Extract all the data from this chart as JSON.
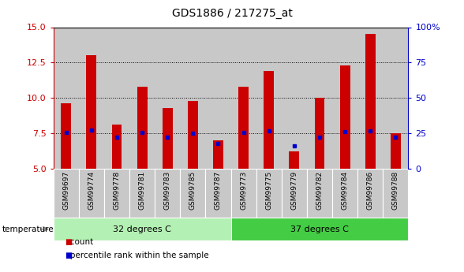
{
  "title": "GDS1886 / 217275_at",
  "categories": [
    "GSM99697",
    "GSM99774",
    "GSM99778",
    "GSM99781",
    "GSM99783",
    "GSM99785",
    "GSM99787",
    "GSM99773",
    "GSM99775",
    "GSM99779",
    "GSM99782",
    "GSM99784",
    "GSM99786",
    "GSM99788"
  ],
  "count_values": [
    9.6,
    13.0,
    8.1,
    10.8,
    9.3,
    9.8,
    7.0,
    10.8,
    11.9,
    6.2,
    10.0,
    12.3,
    14.5,
    7.5
  ],
  "percentile_values": [
    7.55,
    7.72,
    7.2,
    7.55,
    7.25,
    7.5,
    6.8,
    7.55,
    7.65,
    6.6,
    7.2,
    7.6,
    7.65,
    7.25
  ],
  "ylim": [
    5,
    15
  ],
  "y2lim": [
    0,
    100
  ],
  "yticks": [
    5,
    7.5,
    10,
    12.5,
    15
  ],
  "y2ticks": [
    0,
    25,
    50,
    75,
    100
  ],
  "group1_label": "32 degrees C",
  "group2_label": "37 degrees C",
  "group1_count": 7,
  "group2_count": 7,
  "group1_color": "#b3f0b3",
  "group2_color": "#44cc44",
  "bar_color": "#CC0000",
  "dot_color": "#0000CC",
  "col_bg_color": "#C8C8C8",
  "left_axis_color": "#CC0000",
  "right_axis_color": "#0000CC",
  "title_fontsize": 10,
  "legend_count_label": "count",
  "legend_percentile_label": "percentile rank within the sample",
  "temperature_label": "temperature",
  "bar_width": 0.4
}
